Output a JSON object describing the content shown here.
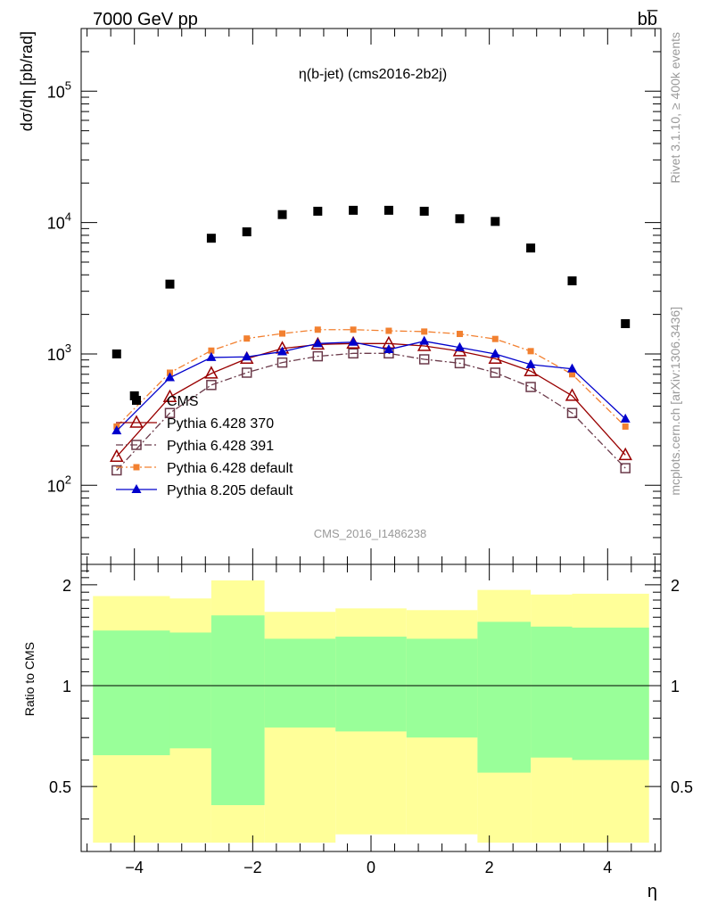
{
  "header": {
    "energy_label": "7000 GeV pp",
    "process_label": "bb̅",
    "plot_title": "η(b-jet) (cms2016-2b2j)",
    "analysis_id": "CMS_2016_I1486238",
    "rivet_label": "Rivet 3.1.10, ≥ 400k events",
    "mcplots_label": "mcplots.cern.ch [arXiv:1306.3436]"
  },
  "chart_data": {
    "type": "scatter",
    "title": "η(b-jet) (cms2016-2b2j)",
    "xlabel": "η",
    "ylabel": "dσ/dη [pb/rad]",
    "xlim": [
      -4.9,
      4.9
    ],
    "ylim": [
      25,
      300000
    ],
    "yscale": "log",
    "x_ticks": [
      "−4",
      "−2",
      "0",
      "2",
      "4"
    ],
    "y_ticks": [
      {
        "base": "10",
        "exp": "2",
        "value": 100
      },
      {
        "base": "10",
        "exp": "3",
        "value": 1000
      },
      {
        "base": "10",
        "exp": "4",
        "value": 10000
      },
      {
        "base": "10",
        "exp": "5",
        "value": 100000
      }
    ],
    "x": [
      -4.3,
      -3.4,
      -2.7,
      -2.1,
      -1.5,
      -0.9,
      -0.3,
      0.3,
      0.9,
      1.5,
      2.1,
      2.7,
      3.4,
      4.3
    ],
    "bin_edges": [
      -4.7,
      -3.8,
      -3.0,
      -2.4,
      -1.8,
      -1.2,
      -0.6,
      0.0,
      0.6,
      1.2,
      1.8,
      2.4,
      3.0,
      3.8,
      4.7
    ],
    "series": [
      {
        "name": "CMS",
        "color": "#000000",
        "marker": "square",
        "line": "none",
        "values": [
          1000,
          3400,
          7600,
          8500,
          11500,
          12200,
          12400,
          12400,
          12200,
          10700,
          10200,
          6400,
          3600,
          1700
        ],
        "extra_points": [
          {
            "x": -4.0,
            "y": 480
          }
        ]
      },
      {
        "name": "Pythia 6.428 370",
        "color": "#990000",
        "marker": "open-triangle",
        "line": "solid",
        "values": [
          165,
          470,
          710,
          920,
          1100,
          1180,
          1200,
          1200,
          1150,
          1050,
          920,
          740,
          480,
          170
        ]
      },
      {
        "name": "Pythia 6.428 391",
        "color": "#6b3a4a",
        "marker": "open-square",
        "line": "dashdot",
        "values": [
          130,
          355,
          580,
          720,
          860,
          960,
          1010,
          1010,
          910,
          850,
          720,
          560,
          355,
          135
        ]
      },
      {
        "name": "Pythia 6.428 default",
        "color": "#f28030",
        "marker": "filled-square",
        "line": "dashdot",
        "values": [
          280,
          720,
          1060,
          1310,
          1430,
          1530,
          1530,
          1500,
          1480,
          1420,
          1300,
          1050,
          700,
          280
        ]
      },
      {
        "name": "Pythia 8.205 default",
        "color": "#0000cc",
        "marker": "filled-triangle",
        "line": "solid",
        "values": [
          260,
          660,
          940,
          950,
          1040,
          1200,
          1230,
          1080,
          1250,
          1120,
          1000,
          830,
          770,
          320
        ]
      }
    ],
    "ratio_panel": {
      "ylabel": "Ratio to CMS",
      "ylim": [
        0.32,
        2.3
      ],
      "y_ticks": [
        {
          "label": "0.5",
          "value": 0.5
        },
        {
          "label": "1",
          "value": 1
        },
        {
          "label": "2",
          "value": 2
        }
      ],
      "band_edges": [
        -4.7,
        -3.4,
        -2.7,
        -1.8,
        -0.6,
        0.6,
        1.8,
        2.7,
        3.4,
        4.7
      ],
      "yellow_band": {
        "color": "#ffff99",
        "lo": [
          0.34,
          0.34,
          0.34,
          0.34,
          0.36,
          0.36,
          0.34,
          0.34,
          0.34
        ],
        "hi": [
          1.85,
          1.82,
          2.06,
          1.66,
          1.7,
          1.68,
          1.93,
          1.87,
          1.88
        ]
      },
      "green_band": {
        "color": "#99ff99",
        "lo": [
          0.62,
          0.65,
          0.44,
          0.75,
          0.73,
          0.7,
          0.55,
          0.61,
          0.6
        ],
        "hi": [
          1.46,
          1.44,
          1.62,
          1.38,
          1.4,
          1.38,
          1.55,
          1.5,
          1.49
        ]
      }
    }
  }
}
